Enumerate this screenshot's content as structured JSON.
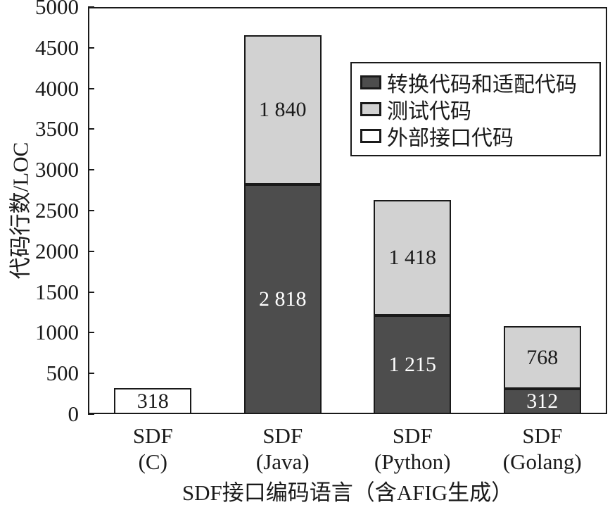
{
  "chart_data": {
    "type": "bar",
    "stacked": true,
    "title": "",
    "xlabel": "SDF接口编码语言（含AFIG生成）",
    "ylabel": "代码行数/LOC",
    "ylim": [
      0,
      5000
    ],
    "yticks": [
      0,
      500,
      1000,
      1500,
      2000,
      2500,
      3000,
      3500,
      4000,
      4500,
      5000
    ],
    "grid": false,
    "legend_position": "upper-right-inside",
    "categories": [
      {
        "line1": "SDF",
        "line2": "(C)"
      },
      {
        "line1": "SDF",
        "line2": "(Java)"
      },
      {
        "line1": "SDF",
        "line2": "(Python)"
      },
      {
        "line1": "SDF",
        "line2": "(Golang)"
      }
    ],
    "series": [
      {
        "name": "转换代码和适配代码",
        "color": "#4d4d4d",
        "label_color": "#ffffff",
        "values": [
          0,
          2818,
          1215,
          312
        ],
        "labels": [
          "",
          "2 818",
          "1 215",
          "312"
        ]
      },
      {
        "name": "测试代码",
        "color": "#d2d2d2",
        "label_color": "#1a1a1a",
        "values": [
          0,
          1840,
          1418,
          768
        ],
        "labels": [
          "",
          "1 840",
          "1 418",
          "768"
        ]
      },
      {
        "name": "外部接口代码",
        "color": "#ffffff",
        "label_color": "#1a1a1a",
        "values": [
          318,
          0,
          0,
          0
        ],
        "labels": [
          "318",
          "",
          "",
          ""
        ]
      }
    ]
  },
  "colors": {
    "axis": "#1a1a1a",
    "background": "#ffffff"
  }
}
